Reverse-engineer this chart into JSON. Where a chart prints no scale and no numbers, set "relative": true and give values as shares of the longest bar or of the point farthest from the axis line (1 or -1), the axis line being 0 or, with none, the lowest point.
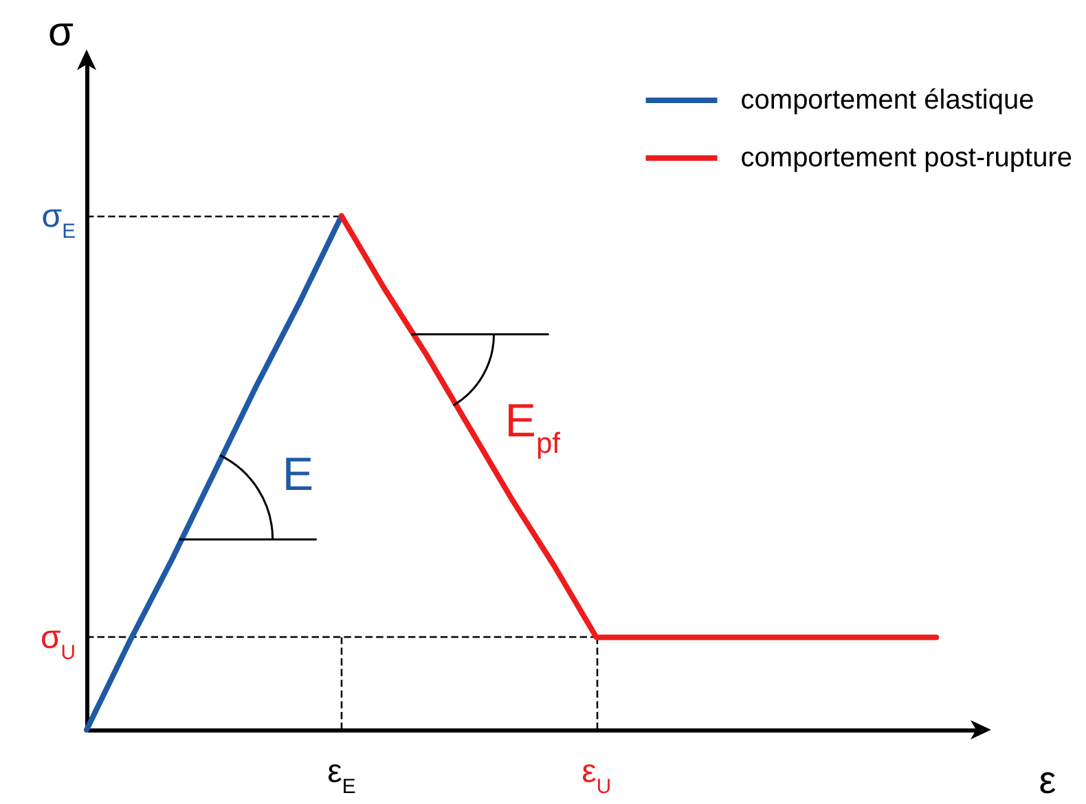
{
  "chart_data": {
    "type": "line",
    "relative": true,
    "xlabel": "ε",
    "ylabel": "σ",
    "categories": [
      null,
      null,
      null,
      null,
      null,
      null,
      "ε$_{E}$",
      null,
      null,
      null,
      null,
      null,
      "ε$_{U}$",
      null,
      null,
      null,
      null,
      null,
      null,
      null,
      null,
      null
    ],
    "series": [
      {
        "name": "comportement élastique",
        "color": "#1f5aa6",
        "values": [
          0,
          0.17,
          0.33,
          0.5,
          0.67,
          0.83,
          1,
          null,
          null,
          null,
          null,
          null,
          null,
          null,
          null,
          null,
          null,
          null,
          null,
          null,
          null,
          null
        ]
      },
      {
        "name": "comportement post-rupture",
        "color": "#ee1c1c",
        "values": [
          null,
          null,
          null,
          null,
          null,
          null,
          1,
          0.86,
          0.73,
          0.59,
          0.45,
          0.32,
          0.18,
          0.18,
          0.18,
          0.18,
          0.18,
          0.18,
          0.18,
          0.18,
          0.18,
          null
        ]
      }
    ],
    "ref_lines": [
      {
        "axis": "y",
        "value": 1,
        "label": "σ$_{E}$",
        "line_style": "dashed"
      },
      {
        "axis": "x",
        "value": "ε$_{E}$",
        "line_style": "dashed"
      },
      {
        "axis": "y",
        "value": 0.18,
        "label": "σ$_{U}$",
        "line_style": "dashed"
      },
      {
        "axis": "x",
        "value": "ε$_{U}$",
        "line_style": "dashed"
      }
    ],
    "annotations": [
      "E",
      "E$_{pf}$"
    ],
    "legend": "top right",
    "marker": "none",
    "line_style": "solid",
    "grid": false
  }
}
